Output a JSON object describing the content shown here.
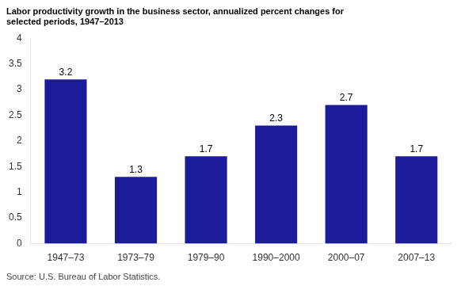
{
  "chart_data": {
    "type": "bar",
    "title": [
      "Labor productivity growth in the business sector, annualized percent changes for",
      "selected periods, 1947–2013"
    ],
    "source": "Source: U.S. Bureau of Labor Statistics.",
    "categories": [
      "1947–73",
      "1973–79",
      "1979–90",
      "1990–2000",
      "2000–07",
      "2007–13"
    ],
    "values": [
      3.2,
      1.3,
      1.7,
      2.3,
      2.7,
      1.7
    ],
    "color": "#1C1C9B",
    "ylim": [
      0,
      4
    ],
    "yticks": [
      0,
      0.5,
      1,
      1.5,
      2,
      2.5,
      3,
      3.5,
      4
    ],
    "grid": false,
    "data_labels": true
  }
}
